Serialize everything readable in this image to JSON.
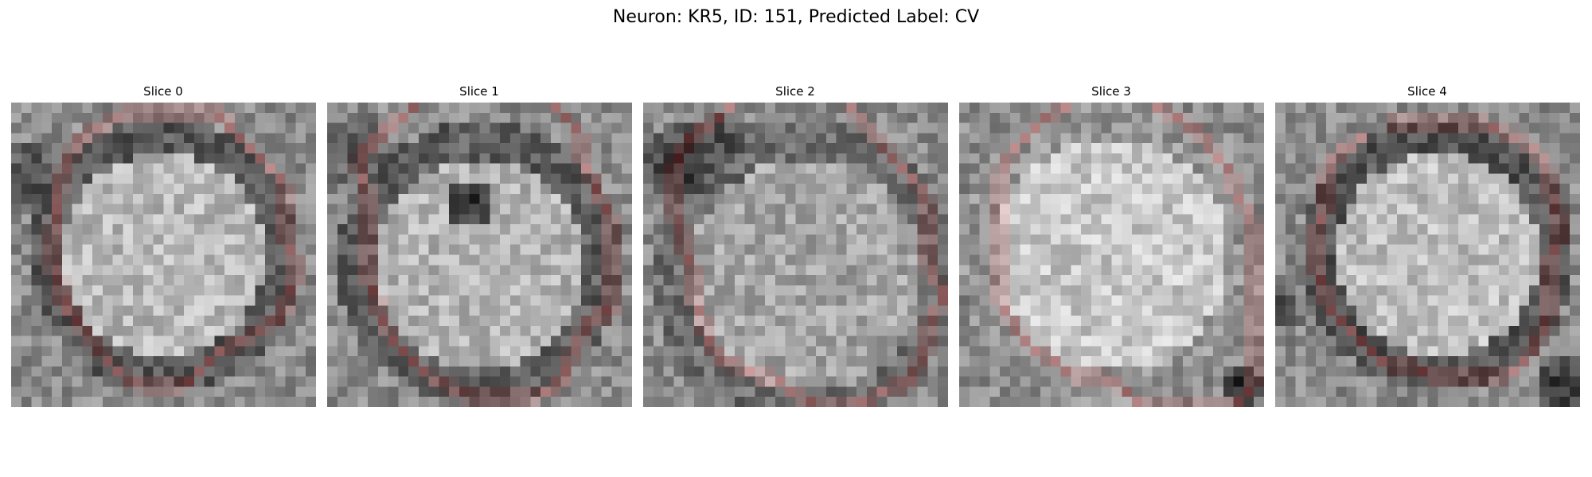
{
  "figure": {
    "title": "Neuron: KR5, ID: 151, Predicted Label: CV"
  },
  "panels": [
    {
      "title": "Slice 0"
    },
    {
      "title": "Slice 1"
    },
    {
      "title": "Slice 2"
    },
    {
      "title": "Slice 3"
    },
    {
      "title": "Slice 4"
    }
  ],
  "colors": {
    "contour": "#ff1a1a",
    "background": "#ffffff",
    "colormap": "gray"
  }
}
